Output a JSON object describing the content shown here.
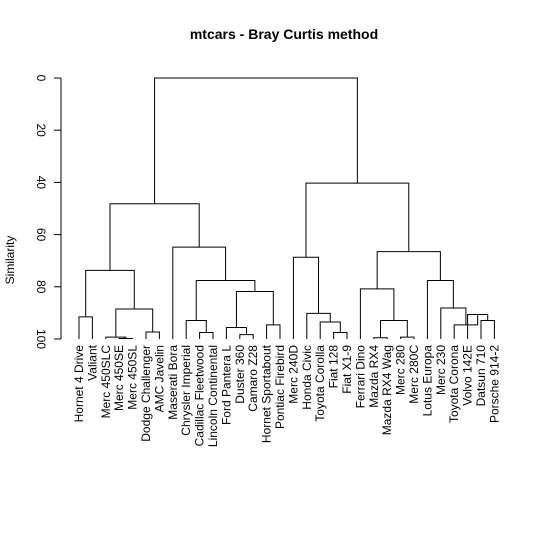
{
  "chart_data": {
    "type": "dendrogram",
    "title": "mtcars - Bray Curtis method",
    "ylabel": "Similarity",
    "ylim": [
      0,
      100
    ],
    "yticks": [
      0,
      20,
      40,
      60,
      80,
      100
    ],
    "leaves": [
      "Hornet 4 Drive",
      "Valiant",
      "Merc 450SLC",
      "Merc 450SE",
      "Merc 450SL",
      "Dodge Challenger",
      "AMC Javelin",
      "Maserati Bora",
      "Chrysler Imperial",
      "Cadillac Fleetwood",
      "Lincoln Continental",
      "Ford Pantera L",
      "Duster 360",
      "Camaro Z28",
      "Hornet Sportabout",
      "Pontiac Firebird",
      "Merc 240D",
      "Honda Civic",
      "Toyota Corolla",
      "Fiat 128",
      "Fiat X1-9",
      "Ferrari Dino",
      "Mazda RX4",
      "Mazda RX4 Wag",
      "Merc 280",
      "Merc 280C",
      "Lotus Europa",
      "Merc 230",
      "Toyota Corona",
      "Volvo 142E",
      "Datsun 710",
      "Porsche 914-2"
    ],
    "merges": [
      {
        "a": 0,
        "b": 1,
        "height": 91.5
      },
      {
        "a": 3,
        "b": 4,
        "height": 99.8
      },
      {
        "a": 2,
        "b": 33,
        "height": 99.3
      },
      {
        "a": 5,
        "b": 6,
        "height": 97.3
      },
      {
        "a": 34,
        "b": 35,
        "height": 88.5
      },
      {
        "a": 32,
        "b": 36,
        "height": 73.7
      },
      {
        "a": 9,
        "b": 10,
        "height": 97.5
      },
      {
        "a": 8,
        "b": 38,
        "height": 92.9
      },
      {
        "a": 12,
        "b": 13,
        "height": 98.3
      },
      {
        "a": 11,
        "b": 40,
        "height": 95.6
      },
      {
        "a": 14,
        "b": 15,
        "height": 94.6
      },
      {
        "a": 41,
        "b": 42,
        "height": 81.8
      },
      {
        "a": 39,
        "b": 43,
        "height": 77.6
      },
      {
        "a": 7,
        "b": 44,
        "height": 64.8
      },
      {
        "a": 37,
        "b": 45,
        "height": 48.2
      },
      {
        "a": 19,
        "b": 20,
        "height": 97.5
      },
      {
        "a": 18,
        "b": 47,
        "height": 93.5
      },
      {
        "a": 17,
        "b": 48,
        "height": 90.2
      },
      {
        "a": 16,
        "b": 49,
        "height": 68.7
      },
      {
        "a": 22,
        "b": 23,
        "height": 99.5
      },
      {
        "a": 24,
        "b": 25,
        "height": 99.3
      },
      {
        "a": 51,
        "b": 52,
        "height": 92.9
      },
      {
        "a": 21,
        "b": 53,
        "height": 80.8
      },
      {
        "a": 30,
        "b": 31,
        "height": 92.9
      },
      {
        "a": 29,
        "b": 55,
        "height": 90.6
      },
      {
        "a": 28,
        "b": 56,
        "height": 94.6
      },
      {
        "a": 27,
        "b": 57,
        "height": 88.1
      },
      {
        "a": 26,
        "b": 58,
        "height": 77.6
      },
      {
        "a": 54,
        "b": 59,
        "height": 66.5
      },
      {
        "a": 50,
        "b": 60,
        "height": 40.3
      },
      {
        "a": 46,
        "b": 61,
        "height": 0
      }
    ]
  }
}
